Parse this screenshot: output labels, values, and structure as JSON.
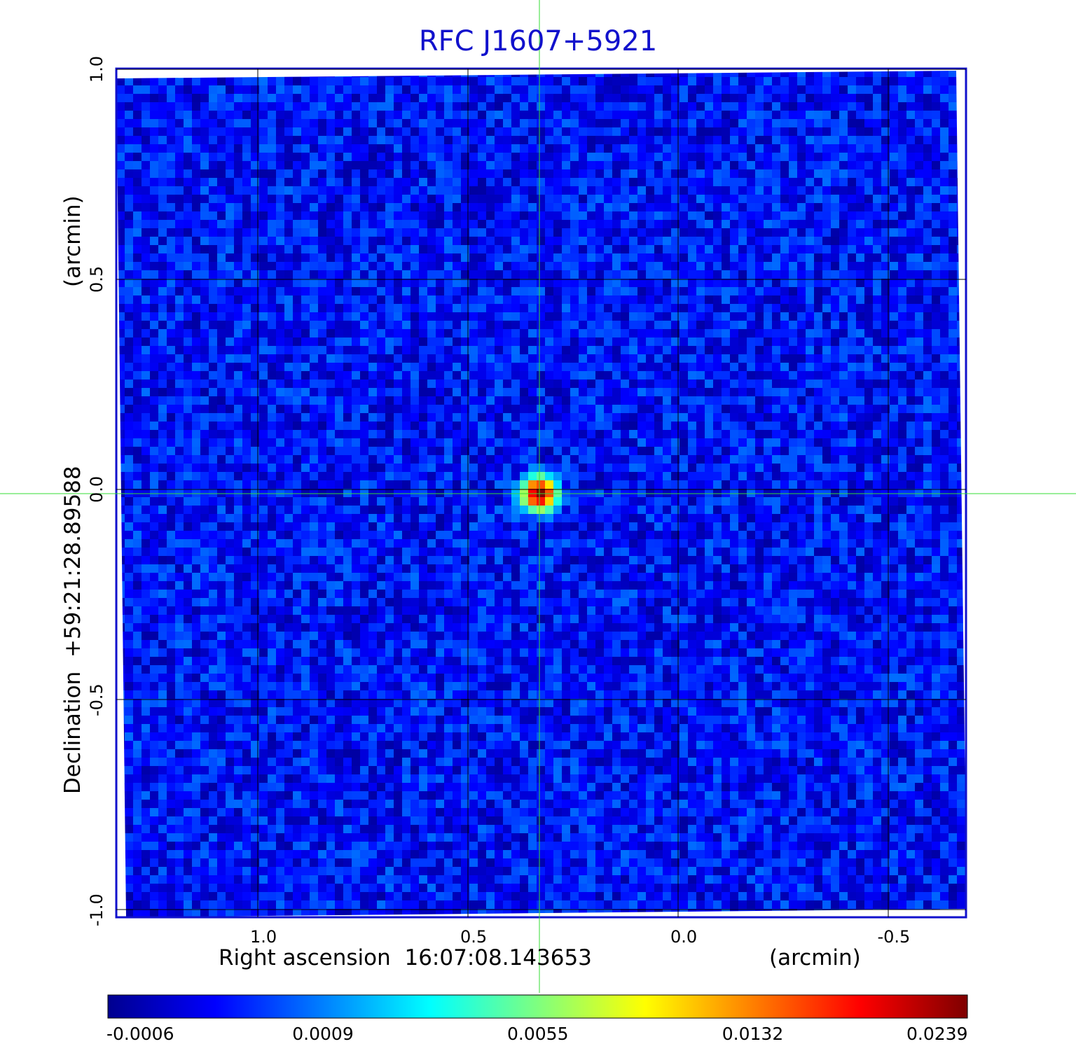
{
  "chart_data": {
    "type": "heatmap",
    "title": "RFC J1607+5921",
    "x_axis": {
      "label": "Right ascension  16:07:08.143653",
      "unit_label": "(arcmin)",
      "ticks": [
        "1.0",
        "0.5",
        "0.0",
        "-0.5"
      ],
      "tick_values": [
        1.0,
        0.5,
        0.0,
        -0.5
      ],
      "range": [
        1.33,
        -0.68
      ],
      "direction": "reversed"
    },
    "y_axis": {
      "label": "Declination  +59:21:28.89588",
      "unit_label": "(arcmin)",
      "ticks": [
        "1.0",
        "0.5",
        "0.0",
        "-0.5",
        "-1.0"
      ],
      "tick_values": [
        1.0,
        0.5,
        0.0,
        -0.5,
        -1.0
      ],
      "range": [
        -1.02,
        1.0
      ]
    },
    "grid": true,
    "crosshair": {
      "x": 0.33,
      "y": -0.01,
      "color": "#33dd33"
    },
    "source_peak": {
      "x": 0.33,
      "y": -0.01,
      "value": 0.0239
    },
    "background_value": 0.0002,
    "colorbar": {
      "colormap": "jet",
      "ticks": [
        "-0.0006",
        "0.0009",
        "0.0055",
        "0.0132",
        "0.0239"
      ],
      "tick_values": [
        -0.0006,
        0.0009,
        0.0055,
        0.0132,
        0.0239
      ]
    },
    "colors": {
      "title": "#1111cc",
      "frame": "#1111cc",
      "grid": "#000000",
      "crosshair": "#33dd33"
    }
  }
}
